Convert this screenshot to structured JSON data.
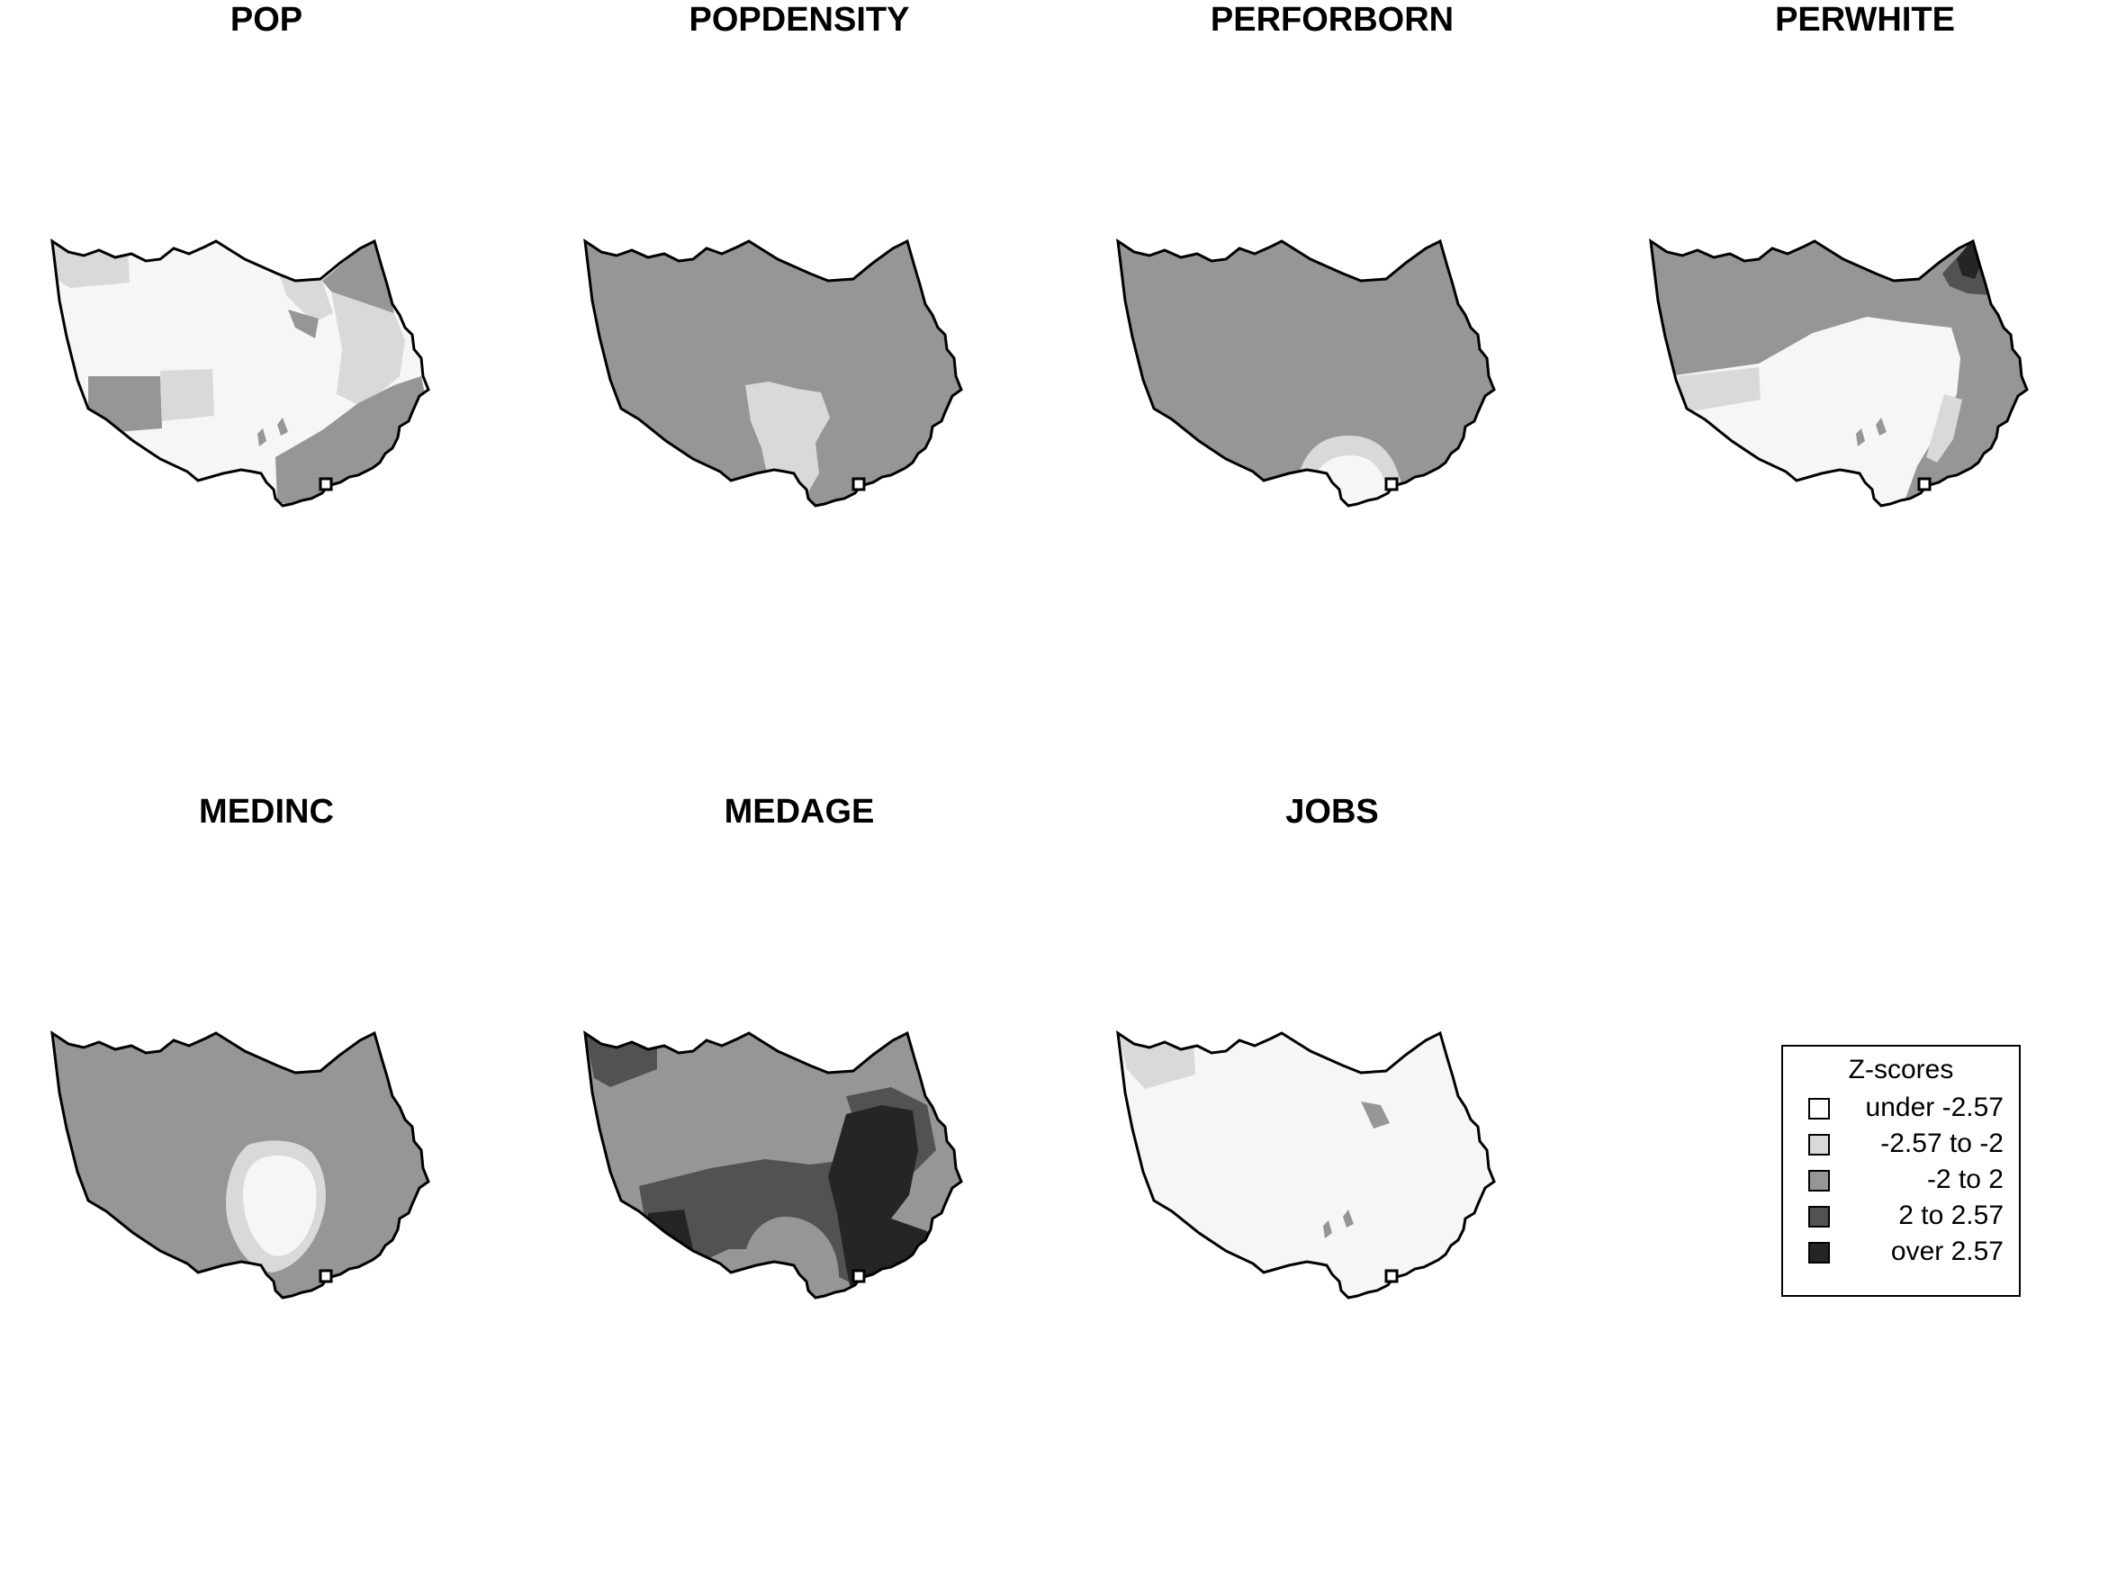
{
  "palette": [
    "#ffffff",
    "#d9d9d9",
    "#969696",
    "#525252",
    "#252525"
  ],
  "background_fill": "#f6f6f6",
  "legend": {
    "title": "Z-scores",
    "classes": [
      {
        "label": "under -2.57",
        "class": 0
      },
      {
        "label": "-2.57 to -2",
        "class": 1
      },
      {
        "label": "-2 to 2",
        "class": 2
      },
      {
        "label": "2 to 2.57",
        "class": 3
      },
      {
        "label": "over 2.57",
        "class": 4
      }
    ]
  },
  "panels": [
    {
      "title": "POP",
      "base_class": "background"
    },
    {
      "title": "POPDENSITY",
      "base_class": 2
    },
    {
      "title": "PERFORBORN",
      "base_class": 2
    },
    {
      "title": "PERWHITE",
      "base_class": 2
    },
    {
      "title": "MEDINC",
      "base_class": 2
    },
    {
      "title": "MEDAGE",
      "base_class": 2
    },
    {
      "title": "JOBS",
      "base_class": "background"
    }
  ]
}
